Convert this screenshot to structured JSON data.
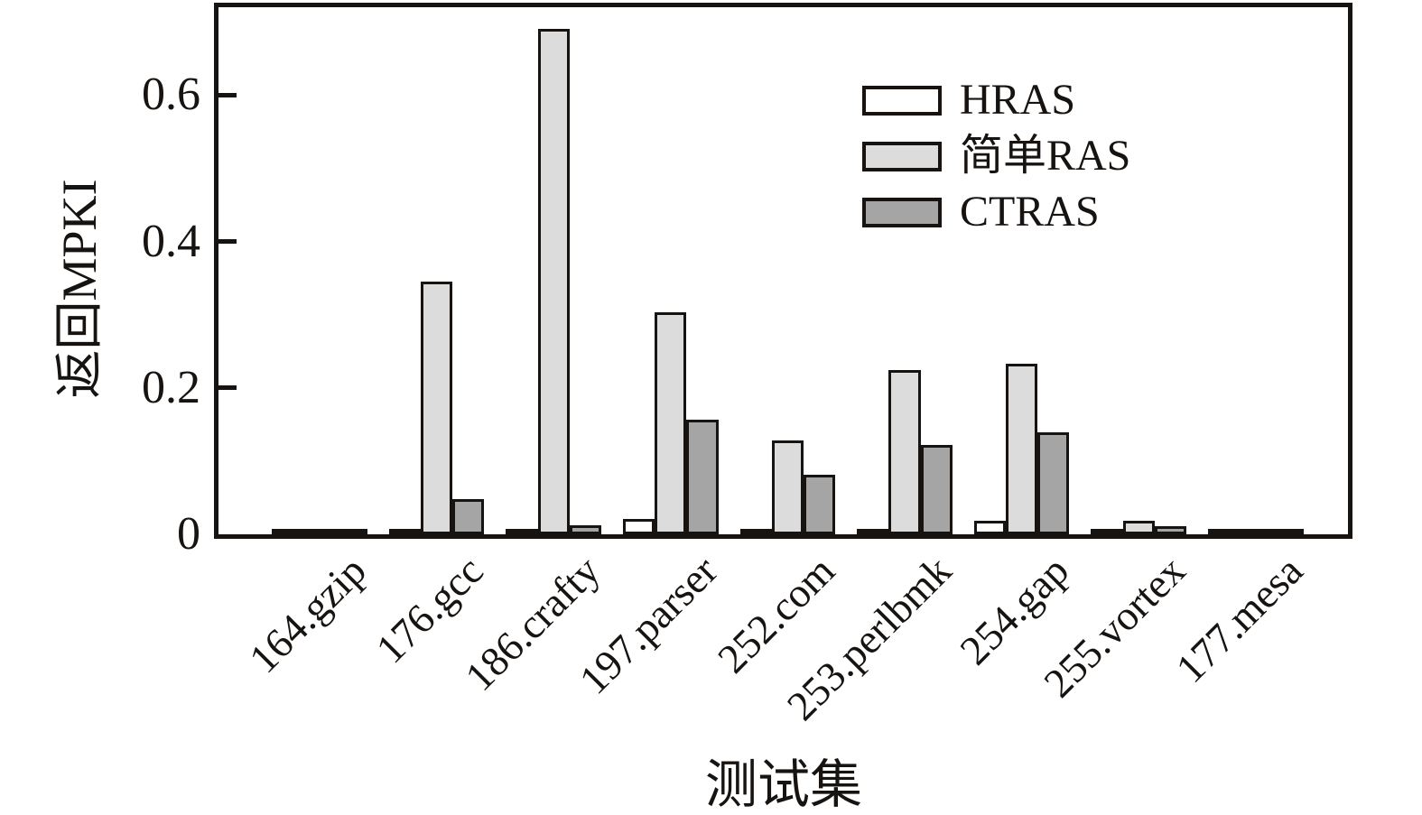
{
  "figure": {
    "background": "#ffffff",
    "axis_color": "#171310"
  },
  "chart_data": {
    "type": "bar",
    "title": "",
    "xlabel": "测试集",
    "ylabel": "返回MPKI",
    "ylim": [
      0,
      0.72
    ],
    "yticks": [
      0,
      0.2,
      0.4,
      0.6
    ],
    "ytick_labels": [
      "0",
      "0.2",
      "0.4",
      "0.6"
    ],
    "grid": false,
    "legend_position": "upper right inside",
    "bar_edge_color": "#171310",
    "categories": [
      "164.gzip",
      "176.gcc",
      "186.crafty",
      "197.parser",
      "252.com",
      "253.perlbmk",
      "254.gap",
      "255.vortex",
      "177.mesa"
    ],
    "series": [
      {
        "name": "HRAS",
        "color": "#ffffff",
        "values": [
          0.001,
          0.001,
          0.001,
          0.021,
          0.002,
          0.006,
          0.018,
          0.001,
          0.001
        ]
      },
      {
        "name": "简单RAS",
        "color": "#dcdcdc",
        "values": [
          0.008,
          0.345,
          0.69,
          0.303,
          0.128,
          0.224,
          0.233,
          0.018,
          0.006
        ]
      },
      {
        "name": "CTRAS",
        "color": "#a5a5a5",
        "values": [
          0.002,
          0.048,
          0.012,
          0.156,
          0.081,
          0.122,
          0.139,
          0.011,
          0.004
        ]
      }
    ]
  }
}
